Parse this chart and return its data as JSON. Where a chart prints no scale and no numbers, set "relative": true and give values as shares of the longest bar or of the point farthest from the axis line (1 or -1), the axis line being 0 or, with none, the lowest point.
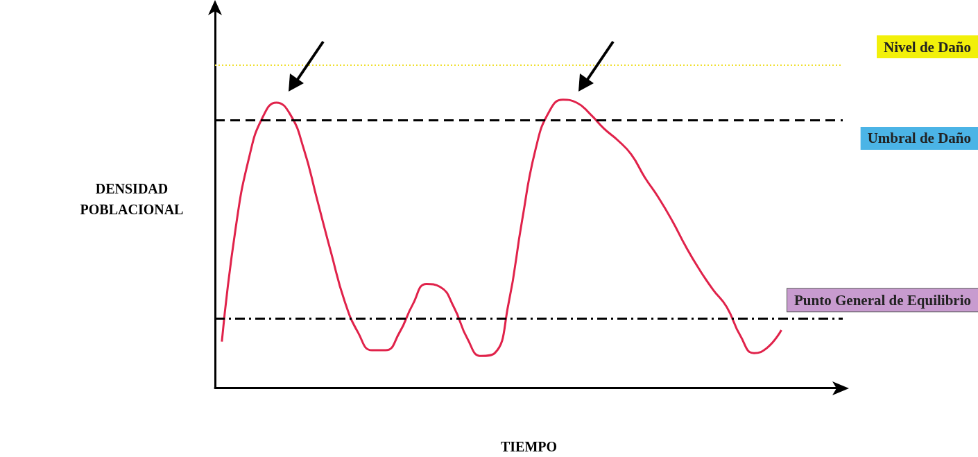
{
  "chart_data": {
    "type": "line",
    "relative": true,
    "xlabel": "TIEMPO",
    "ylabel": "DENSIDAD\nPOBLACIONAL",
    "categories": [
      null,
      null,
      null,
      null,
      null,
      null,
      null,
      null,
      null,
      null,
      null,
      null,
      null,
      null,
      null,
      null,
      null,
      null,
      null,
      null,
      null,
      null,
      null,
      null,
      null,
      null,
      null,
      null,
      null,
      null,
      null,
      null,
      null,
      null,
      null,
      null,
      null,
      null,
      null,
      null,
      null,
      null,
      null,
      null,
      null,
      null
    ],
    "series": [
      {
        "color": "#e0224a",
        "values": [
          0.16,
          0.55,
          0.8,
          0.94,
          0.99,
          0.95,
          0.83,
          0.65,
          0.47,
          0.3,
          0.19,
          0.13,
          0.13,
          0.19,
          0.29,
          0.36,
          0.35,
          0.28,
          0.17,
          0.11,
          0.12,
          0.29,
          0.58,
          0.83,
          0.96,
          1,
          0.99,
          0.95,
          0.9,
          0.86,
          0.81,
          0.73,
          0.66,
          0.58,
          0.49,
          0.41,
          0.34,
          0.28,
          0.18,
          0.12,
          0.14,
          0.2,
          null,
          null,
          null,
          null
        ]
      }
    ],
    "ref_lines": [
      {
        "axis": "y",
        "value": 1.12,
        "label": "Nivel de Daño",
        "color": "#f0e030",
        "line_style": "dotted"
      },
      {
        "axis": "y",
        "value": 0.93,
        "label": "Umbral de Daño",
        "color": "#000000",
        "line_style": "dashed"
      },
      {
        "axis": "y",
        "value": 0.24,
        "label": "Punto General de Equilibrio",
        "color": "#000000",
        "line_style": "dashdot"
      }
    ],
    "grid": false,
    "marker": "none",
    "line_style": "solid"
  }
}
